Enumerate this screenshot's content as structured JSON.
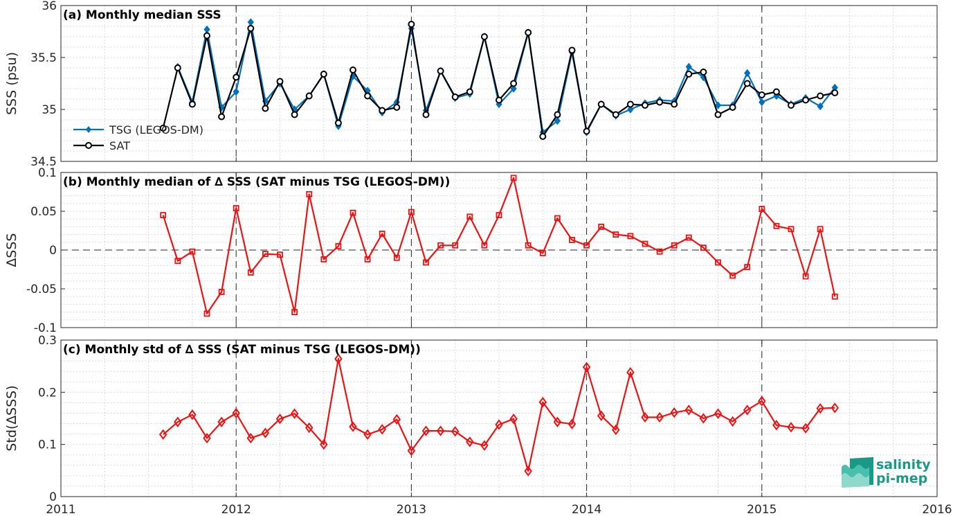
{
  "x_dates": [
    "2011-08",
    "2011-09",
    "2011-10",
    "2011-11",
    "2011-12",
    "2012-01",
    "2012-02",
    "2012-03",
    "2012-04",
    "2012-05",
    "2012-06",
    "2012-07",
    "2012-08",
    "2012-09",
    "2012-10",
    "2012-11",
    "2012-12",
    "2013-01",
    "2013-02",
    "2013-03",
    "2013-04",
    "2013-05",
    "2013-06",
    "2013-07",
    "2013-08",
    "2013-09",
    "2013-10",
    "2013-11",
    "2013-12",
    "2014-01",
    "2014-02",
    "2014-03",
    "2014-04",
    "2014-05",
    "2014-06",
    "2014-07",
    "2014-08",
    "2014-09",
    "2014-10",
    "2014-11",
    "2014-12",
    "2015-01",
    "2015-02",
    "2015-03",
    "2015-04",
    "2015-05",
    "2015-06"
  ],
  "x_tick_labels": [
    "2011",
    "2012",
    "2013",
    "2014",
    "2015",
    "2016"
  ],
  "colors": {
    "tsg": "#0072BD",
    "sat": "#000000",
    "delta": "#ee1111",
    "grid": "#cfcfcf",
    "logo": "#1a9a86"
  },
  "logo": {
    "line1": "salinity",
    "line2": "pi-mep"
  },
  "chart_data": [
    {
      "type": "line",
      "title": "(a) Monthly median SSS",
      "xlabel": "",
      "ylabel": "SSS (psu)",
      "xlim": [
        "2011-01",
        "2016-01"
      ],
      "ylim": [
        34.5,
        36
      ],
      "yticks": [
        34.5,
        35,
        35.5,
        36
      ],
      "ytick_labels": [
        "34.5",
        "35",
        "35.5",
        "36"
      ],
      "legend_position": "bottom-left",
      "series": [
        {
          "name": "TSG (LEGOS-DM)",
          "marker": "diamond",
          "values": [
            null,
            35.41,
            35.07,
            35.77,
            35.02,
            35.17,
            35.84,
            35.08,
            35.25,
            35.0,
            35.13,
            35.34,
            34.84,
            35.32,
            35.18,
            34.97,
            35.07,
            35.78,
            34.99,
            35.37,
            35.11,
            35.15,
            35.7,
            35.05,
            35.2,
            35.74,
            34.78,
            34.89,
            35.55,
            34.78,
            35.05,
            34.94,
            35.0,
            35.06,
            35.09,
            35.08,
            35.41,
            35.31,
            35.04,
            35.04,
            35.35,
            35.07,
            35.13,
            35.05,
            35.11,
            35.03,
            35.21
          ]
        },
        {
          "name": "SAT",
          "marker": "circle",
          "values": [
            34.82,
            35.4,
            35.05,
            35.71,
            34.93,
            35.31,
            35.78,
            35.01,
            35.27,
            34.95,
            35.13,
            35.34,
            34.87,
            35.38,
            35.13,
            34.99,
            35.02,
            35.82,
            34.95,
            35.37,
            35.12,
            35.17,
            35.7,
            35.09,
            35.25,
            35.74,
            34.74,
            34.95,
            35.57,
            34.79,
            35.05,
            34.95,
            35.05,
            35.04,
            35.07,
            35.05,
            35.34,
            35.36,
            34.95,
            35.02,
            35.25,
            35.14,
            35.17,
            35.04,
            35.09,
            35.13,
            35.16
          ]
        }
      ]
    },
    {
      "type": "line",
      "title": "(b) Monthly median of ∆ SSS (SAT minus TSG (LEGOS-DM))",
      "xlabel": "",
      "ylabel": "∆SSS",
      "xlim": [
        "2011-01",
        "2016-01"
      ],
      "ylim": [
        -0.1,
        0.1
      ],
      "yticks": [
        -0.1,
        -0.05,
        0,
        0.05,
        0.1
      ],
      "ytick_labels": [
        "-0.1",
        "-0.05",
        "0",
        "0.05",
        "0.1"
      ],
      "zero_line": true,
      "series": [
        {
          "marker": "square",
          "values": [
            0.045,
            -0.014,
            -0.002,
            -0.082,
            -0.054,
            0.054,
            -0.029,
            -0.005,
            -0.006,
            -0.08,
            0.072,
            -0.012,
            0.005,
            0.048,
            -0.012,
            0.021,
            -0.01,
            0.049,
            -0.016,
            0.006,
            0.006,
            0.043,
            0.006,
            0.045,
            0.093,
            0.006,
            -0.004,
            0.041,
            0.013,
            0.006,
            0.03,
            0.02,
            0.018,
            0.008,
            -0.002,
            0.006,
            0.016,
            0.003,
            -0.016,
            -0.033,
            -0.022,
            0.053,
            0.031,
            0.027,
            -0.034,
            0.027,
            -0.06
          ]
        }
      ]
    },
    {
      "type": "line",
      "title": "(c) Monthly std of ∆ SSS (SAT minus TSG (LEGOS-DM))",
      "xlabel": "",
      "ylabel": "Std(∆SSS)",
      "xlim": [
        "2011-01",
        "2016-01"
      ],
      "ylim": [
        0,
        0.3
      ],
      "yticks": [
        0,
        0.1,
        0.2,
        0.3
      ],
      "ytick_labels": [
        "0",
        "0.1",
        "0.2",
        "0.3"
      ],
      "series": [
        {
          "marker": "diamond-open",
          "values": [
            0.119,
            0.143,
            0.157,
            0.112,
            0.143,
            0.16,
            0.112,
            0.122,
            0.149,
            0.159,
            0.132,
            0.1,
            0.264,
            0.134,
            0.119,
            0.129,
            0.148,
            0.088,
            0.126,
            0.126,
            0.125,
            0.105,
            0.098,
            0.138,
            0.149,
            0.049,
            0.181,
            0.143,
            0.139,
            0.248,
            0.155,
            0.128,
            0.238,
            0.152,
            0.152,
            0.161,
            0.166,
            0.15,
            0.159,
            0.144,
            0.166,
            0.183,
            0.137,
            0.133,
            0.131,
            0.169,
            0.17
          ]
        }
      ]
    }
  ]
}
